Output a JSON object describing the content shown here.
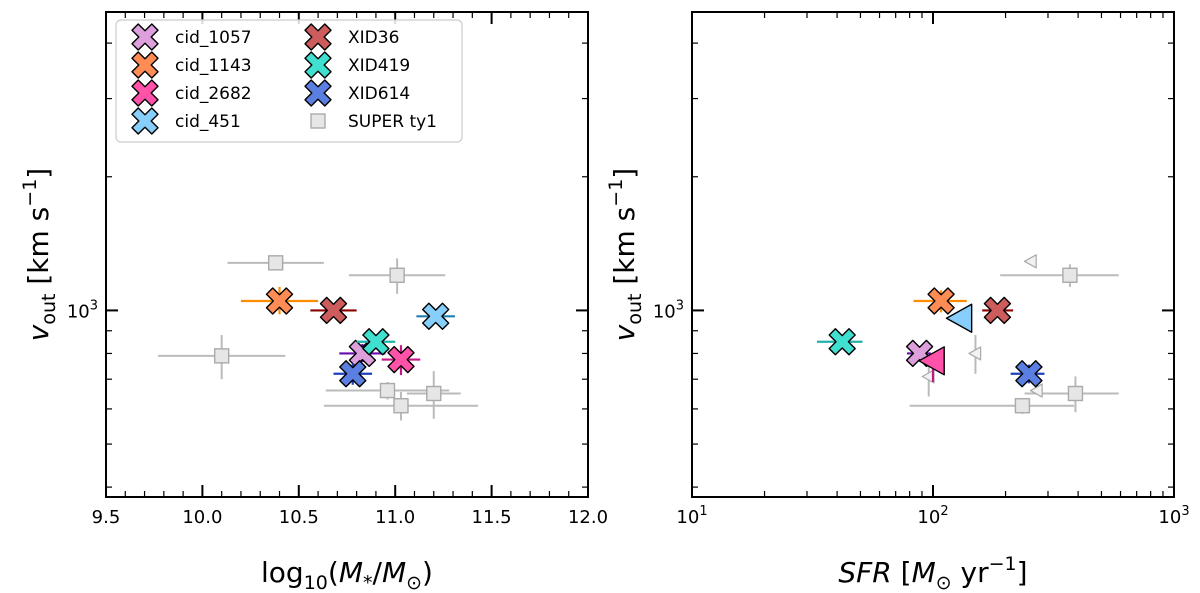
{
  "chart_data": [
    {
      "type": "scatter",
      "panel": "left",
      "xlabel": "log10(M*/M⊙)",
      "ylabel": "v_out [km s^-1]",
      "xscale": "linear",
      "yscale": "log",
      "xlim": [
        9.5,
        12.0
      ],
      "ylim": [
        380,
        4700
      ],
      "xticks": [
        "9.5",
        "10.0",
        "10.5",
        "11.0",
        "11.5",
        "12.0"
      ],
      "yticks": [
        "10^3"
      ],
      "grid": false,
      "legend": {
        "placement": "top-left",
        "columns": 2,
        "entries": [
          {
            "label": "cid_1057",
            "color": "#DDA0DD",
            "marker": "X"
          },
          {
            "label": "cid_1143",
            "color": "#FF8C55",
            "marker": "X"
          },
          {
            "label": "cid_2682",
            "color": "#FF52A8",
            "marker": "X"
          },
          {
            "label": "cid_451",
            "color": "#87CEFA",
            "marker": "X"
          },
          {
            "label": "XID36",
            "color": "#CD5C5C",
            "marker": "X"
          },
          {
            "label": "XID419",
            "color": "#40E0D0",
            "marker": "X"
          },
          {
            "label": "XID614",
            "color": "#5B7FE0",
            "marker": "X"
          },
          {
            "label": "SUPER ty1",
            "color": "#BBBBBB",
            "marker": "square"
          }
        ]
      },
      "series": [
        {
          "name": "cid_1057",
          "color": "#DDA0DD",
          "errcolor": "#6A0DAD",
          "marker": "X",
          "points": [
            {
              "x": 10.83,
              "y": 800,
              "xerr": [
                0.12,
                0.12
              ],
              "yerr": [
                35,
                40
              ]
            }
          ]
        },
        {
          "name": "cid_1143",
          "color": "#FF8C55",
          "errcolor": "#FF8C00",
          "marker": "X",
          "points": [
            {
              "x": 10.4,
              "y": 1050,
              "xerr": [
                0.2,
                0.2
              ],
              "yerr": [
                70,
                80
              ]
            }
          ]
        },
        {
          "name": "cid_2682",
          "color": "#FF52A8",
          "errcolor": "#C71585",
          "marker": "X",
          "points": [
            {
              "x": 11.03,
              "y": 775,
              "xerr": [
                0.1,
                0.1
              ],
              "yerr": [
                60,
                60
              ]
            }
          ]
        },
        {
          "name": "cid_451",
          "color": "#87CEFA",
          "errcolor": "#1E7FB0",
          "marker": "X",
          "points": [
            {
              "x": 11.21,
              "y": 970,
              "xerr": [
                0.1,
                0.1
              ],
              "yerr": [
                0,
                0
              ]
            }
          ]
        },
        {
          "name": "XID36",
          "color": "#CD5C5C",
          "errcolor": "#8B0000",
          "marker": "X",
          "points": [
            {
              "x": 10.68,
              "y": 1000,
              "xerr": [
                0.12,
                0.12
              ],
              "yerr": [
                0,
                0
              ]
            }
          ]
        },
        {
          "name": "XID419",
          "color": "#40E0D0",
          "errcolor": "#20B2AA",
          "marker": "X",
          "points": [
            {
              "x": 10.9,
              "y": 850,
              "xerr": [
                0.1,
                0.1
              ],
              "yerr": [
                25,
                25
              ]
            }
          ]
        },
        {
          "name": "XID614",
          "color": "#5B7FE0",
          "errcolor": "#1E3FBF",
          "marker": "X",
          "points": [
            {
              "x": 10.78,
              "y": 720,
              "xerr": [
                0.1,
                0.1
              ],
              "yerr": [
                40,
                40
              ]
            }
          ]
        },
        {
          "name": "SUPER ty1",
          "color": "#BBBBBB",
          "errcolor": "#BBBBBB",
          "marker": "square",
          "points": [
            {
              "x": 10.38,
              "y": 1280,
              "xerr": [
                0.25,
                0.25
              ],
              "yerr": [
                25,
                25
              ]
            },
            {
              "x": 11.01,
              "y": 1200,
              "xerr": [
                0.25,
                0.25
              ],
              "yerr": [
                110,
                110
              ]
            },
            {
              "x": 10.1,
              "y": 790,
              "xerr": [
                0.33,
                0.33
              ],
              "yerr": [
                90,
                90
              ]
            },
            {
              "x": 10.96,
              "y": 660,
              "xerr": [
                0.32,
                0.32
              ],
              "yerr": [
                30,
                30
              ]
            },
            {
              "x": 11.2,
              "y": 650,
              "xerr": [
                0.14,
                0.14
              ],
              "yerr": [
                80,
                80
              ]
            },
            {
              "x": 11.03,
              "y": 610,
              "xerr": [
                0.4,
                0.4
              ],
              "yerr": [
                45,
                45
              ]
            }
          ]
        }
      ]
    },
    {
      "type": "scatter",
      "panel": "right",
      "xlabel": "SFR [M⊙ yr^-1]",
      "ylabel": "v_out [km s^-1]",
      "xscale": "log",
      "yscale": "log",
      "xlim": [
        10,
        1000
      ],
      "ylim": [
        380,
        4700
      ],
      "xticks": [
        "10^1",
        "10^2",
        "10^3"
      ],
      "yticks": [
        "10^3"
      ],
      "grid": false,
      "series": [
        {
          "name": "cid_1057",
          "color": "#DDA0DD",
          "errcolor": "#6A0DAD",
          "marker": "X",
          "points": [
            {
              "x": 88,
              "y": 800,
              "xerr": [
                10,
                10
              ],
              "yerr": [
                30,
                30
              ]
            }
          ]
        },
        {
          "name": "cid_1143",
          "color": "#FF8C55",
          "errcolor": "#FF8C00",
          "marker": "X",
          "points": [
            {
              "x": 108,
              "y": 1050,
              "xerr": [
                25,
                30
              ],
              "yerr": [
                60,
                60
              ]
            }
          ]
        },
        {
          "name": "cid_2682",
          "color": "#FF52A8",
          "errcolor": "#C71585",
          "marker": "triangle-left",
          "points": [
            {
              "x": 100,
              "y": 770,
              "xerr": [
                0,
                0
              ],
              "yerr": [
                80,
                0
              ]
            }
          ]
        },
        {
          "name": "cid_451",
          "color": "#87CEFA",
          "errcolor": "#1E7FB0",
          "marker": "triangle-left",
          "points": [
            {
              "x": 130,
              "y": 960,
              "xerr": [
                0,
                0
              ],
              "yerr": [
                0,
                0
              ]
            }
          ]
        },
        {
          "name": "XID36",
          "color": "#CD5C5C",
          "errcolor": "#8B0000",
          "marker": "X",
          "points": [
            {
              "x": 185,
              "y": 1000,
              "xerr": [
                25,
                30
              ],
              "yerr": [
                0,
                0
              ]
            }
          ]
        },
        {
          "name": "XID419",
          "color": "#40E0D0",
          "errcolor": "#20B2AA",
          "marker": "X",
          "points": [
            {
              "x": 42,
              "y": 850,
              "xerr": [
                9,
                9
              ],
              "yerr": [
                0,
                0
              ]
            }
          ]
        },
        {
          "name": "XID614",
          "color": "#5B7FE0",
          "errcolor": "#1E3FBF",
          "marker": "X",
          "points": [
            {
              "x": 250,
              "y": 720,
              "xerr": [
                40,
                40
              ],
              "yerr": [
                35,
                35
              ]
            }
          ]
        },
        {
          "name": "SUPER ty1",
          "color": "#BBBBBB",
          "errcolor": "#BBBBBB",
          "marker": "square",
          "points": [
            {
              "x": 370,
              "y": 1200,
              "xerr": [
                180,
                220
              ],
              "yerr": [
                70,
                70
              ]
            },
            {
              "x": 390,
              "y": 650,
              "xerr": [
                150,
                200
              ],
              "yerr": [
                60,
                60
              ]
            },
            {
              "x": 235,
              "y": 610,
              "xerr": [
                155,
                150
              ],
              "yerr": [
                25,
                25
              ]
            }
          ]
        },
        {
          "name": "SUPER ty1",
          "color": "#BBBBBB",
          "errcolor": "#BBBBBB",
          "marker": "triangle-left",
          "points": [
            {
              "x": 255,
              "y": 1290,
              "xerr": [
                0,
                0
              ],
              "yerr": [
                0,
                0
              ]
            },
            {
              "x": 150,
              "y": 800,
              "xerr": [
                0,
                0
              ],
              "yerr": [
                80,
                80
              ]
            },
            {
              "x": 96,
              "y": 710,
              "xerr": [
                0,
                0
              ],
              "yerr": [
                70,
                70
              ]
            },
            {
              "x": 270,
              "y": 660,
              "xerr": [
                0,
                0
              ],
              "yerr": [
                0,
                0
              ]
            }
          ]
        }
      ]
    }
  ]
}
